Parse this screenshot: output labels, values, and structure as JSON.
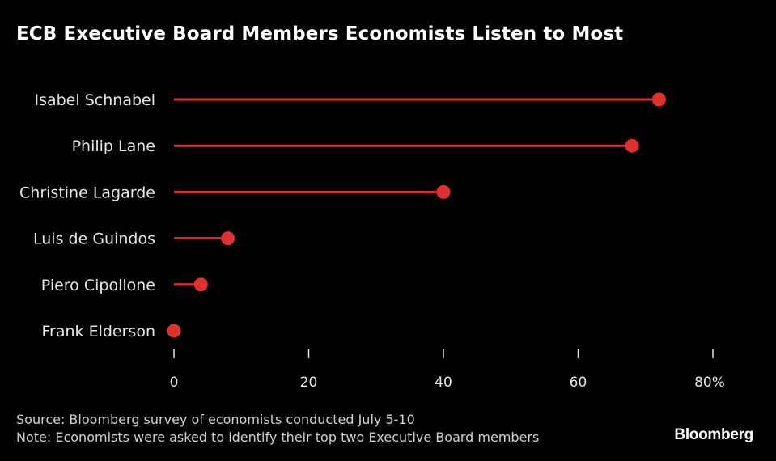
{
  "chart_data": {
    "type": "lollipop",
    "title": "ECB Executive Board Members Economists Listen to Most",
    "categories": [
      "Isabel Schnabel",
      "Philip Lane",
      "Christine Lagarde",
      "Luis de Guindos",
      "Piero Cipollone",
      "Frank Elderson"
    ],
    "values": [
      72,
      68,
      40,
      8,
      4,
      0
    ],
    "xlim": [
      0,
      80
    ],
    "xticks": [
      0,
      20,
      40,
      60,
      80
    ],
    "xtick_labels": [
      "0",
      "20",
      "40",
      "60",
      "80%"
    ],
    "xlabel": "",
    "ylabel": "",
    "grid": false,
    "colors": {
      "series": "#e0312e",
      "background": "#000000"
    }
  },
  "footer": {
    "source": "Source: Bloomberg survey of economists conducted July 5-10",
    "note": "Note: Economists were asked to identify their top two Executive Board members",
    "brand": "Bloomberg"
  }
}
